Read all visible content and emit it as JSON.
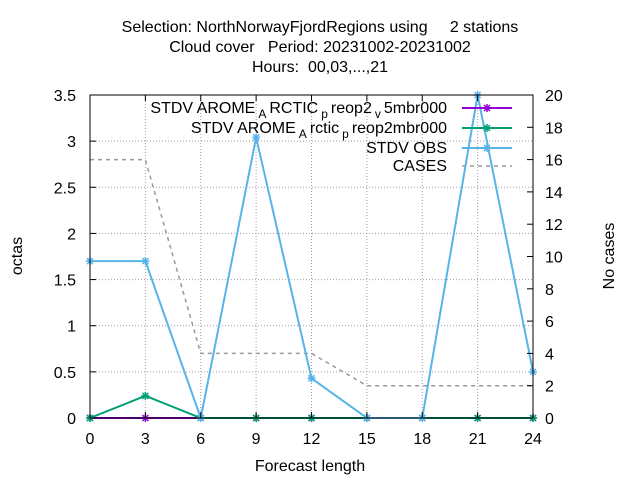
{
  "chart_data": {
    "type": "line",
    "title_lines": [
      "Selection: NorthNorwayFjordRegions using     2 stations",
      "Cloud cover   Period: 20231002-20231002",
      "Hours:  00,03,...,21"
    ],
    "xlabel": "Forecast length",
    "ylabel": "octas",
    "y2label": "No cases",
    "x": [
      0,
      3,
      6,
      9,
      12,
      15,
      18,
      21,
      24
    ],
    "xlim": [
      0,
      24
    ],
    "ylim": [
      0,
      3.5
    ],
    "y2lim": [
      0,
      20
    ],
    "x_ticks": [
      "0",
      "3",
      "6",
      "9",
      "12",
      "15",
      "18",
      "21",
      "24"
    ],
    "y_ticks": [
      "0",
      "0.5",
      "1",
      "1.5",
      "2",
      "2.5",
      "3",
      "3.5"
    ],
    "y2_ticks": [
      "0",
      "2",
      "4",
      "6",
      "8",
      "10",
      "12",
      "14",
      "16",
      "18",
      "20"
    ],
    "grid": true,
    "legend_position": "top-right",
    "series": [
      {
        "name": "STDV AROME_ARCTIC_preop2_v5mbr000",
        "legend_base": "STDV AROME",
        "legend_sub1": "A",
        "legend_mid1": "RCTIC",
        "legend_sub2": "p",
        "legend_mid2": "reop2",
        "legend_sub3": "v",
        "legend_tail": "5mbr000",
        "color": "#9400d3",
        "axis": "y",
        "dash": false,
        "values": [
          0,
          0,
          0,
          0,
          0,
          0,
          0,
          0,
          0
        ]
      },
      {
        "name": "STDV AROME_Arctic_preop2mbr000",
        "legend_base": "STDV AROME",
        "legend_sub1": "A",
        "legend_mid1": "rctic",
        "legend_sub2": "p",
        "legend_tail": "reop2mbr000",
        "color": "#009e73",
        "axis": "y",
        "dash": false,
        "values": [
          0,
          0.24,
          0,
          0,
          0,
          0,
          0,
          0,
          0
        ]
      },
      {
        "name": "STDV OBS",
        "legend_base": "STDV OBS",
        "color": "#56b4e9",
        "axis": "y",
        "dash": false,
        "values": [
          1.7,
          1.7,
          0,
          3.04,
          0.43,
          0,
          0,
          3.5,
          0.5
        ]
      },
      {
        "name": "CASES",
        "legend_base": "CASES",
        "color": "#999999",
        "axis": "y2",
        "dash": true,
        "values": [
          16,
          16,
          4,
          4,
          4,
          2,
          2,
          2,
          2
        ]
      }
    ]
  }
}
